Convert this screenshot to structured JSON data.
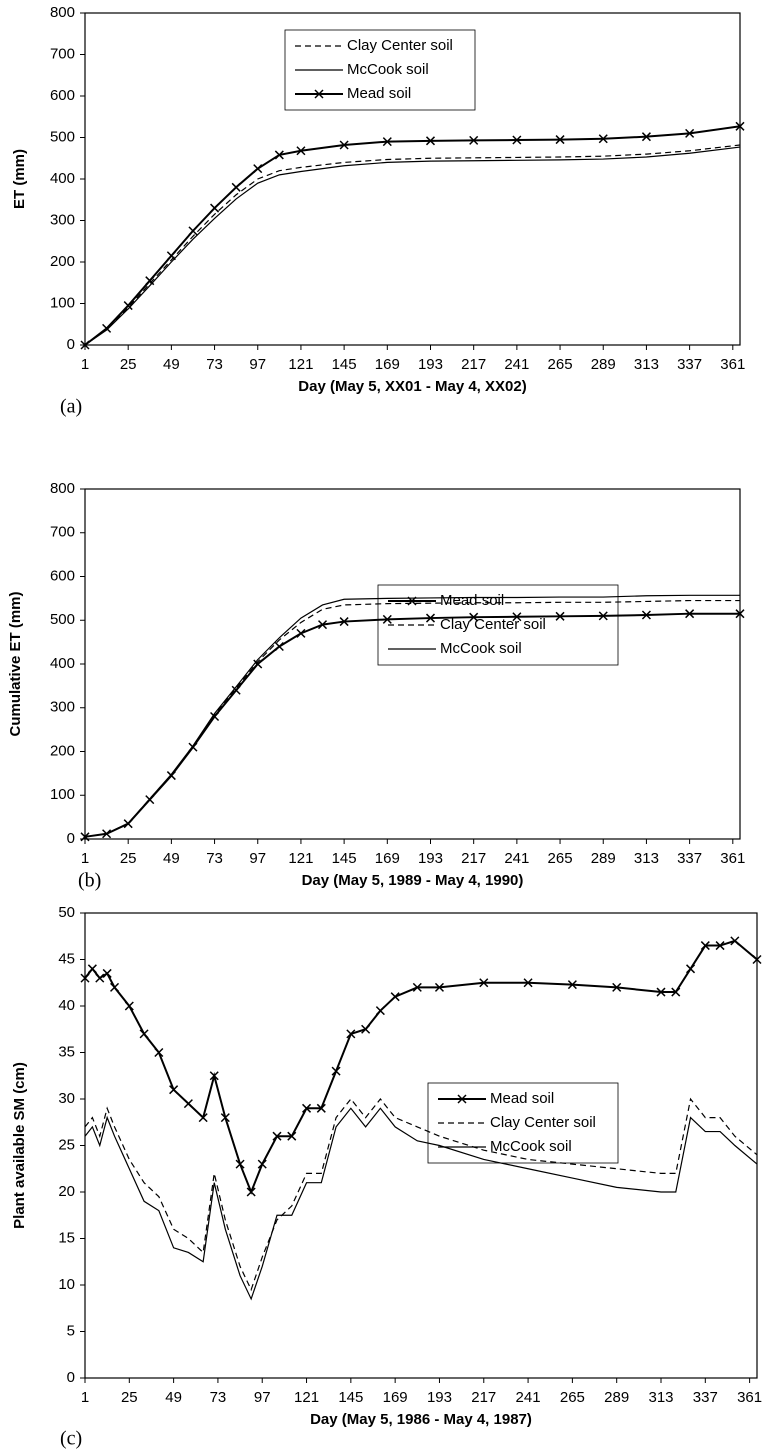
{
  "chart_data": [
    {
      "type": "line",
      "label": "(a)",
      "xlabel": "Day (May 5, XX01 - May 4, XX02)",
      "ylabel": "ET (mm)",
      "x": [
        1,
        13,
        25,
        37,
        49,
        61,
        73,
        85,
        97,
        109,
        121,
        145,
        169,
        193,
        217,
        241,
        265,
        289,
        313,
        337,
        365
      ],
      "series": [
        {
          "name": "Clay Center soil",
          "color": "#000000",
          "dash": "dashed",
          "values": [
            0,
            38,
            90,
            148,
            205,
            262,
            315,
            362,
            400,
            420,
            428,
            440,
            447,
            450,
            451,
            452,
            453,
            455,
            460,
            468,
            482
          ]
        },
        {
          "name": "McCook soil",
          "color": "#000000",
          "dash": "solid",
          "values": [
            0,
            36,
            87,
            143,
            200,
            255,
            305,
            352,
            390,
            410,
            418,
            432,
            440,
            443,
            444,
            445,
            446,
            448,
            453,
            462,
            477
          ]
        },
        {
          "name": "Mead soil",
          "color": "#000000",
          "dash": "solid",
          "marker": "x",
          "values": [
            0,
            40,
            95,
            155,
            215,
            275,
            330,
            380,
            425,
            458,
            468,
            482,
            490,
            492,
            493,
            494,
            495,
            497,
            502,
            510,
            527
          ]
        }
      ],
      "xlim": [
        1,
        365
      ],
      "xticks": [
        1,
        25,
        49,
        73,
        97,
        121,
        145,
        169,
        193,
        217,
        241,
        265,
        289,
        313,
        337,
        361
      ],
      "ylim": [
        0,
        800
      ],
      "yticks": [
        0,
        100,
        200,
        300,
        400,
        500,
        600,
        700,
        800
      ],
      "grid": false,
      "legend": "upper center"
    },
    {
      "type": "line",
      "label": "(b)",
      "xlabel": "Day (May 5, 1989 - May 4, 1990)",
      "ylabel": "Cumulative ET (mm)",
      "x": [
        1,
        13,
        25,
        37,
        49,
        61,
        73,
        85,
        97,
        109,
        121,
        133,
        145,
        169,
        193,
        217,
        241,
        265,
        289,
        313,
        337,
        365
      ],
      "series": [
        {
          "name": "Mead soil",
          "color": "#000000",
          "dash": "solid",
          "marker": "x",
          "values": [
            5,
            12,
            35,
            90,
            145,
            210,
            280,
            340,
            400,
            440,
            470,
            490,
            497,
            502,
            505,
            507,
            508,
            509,
            510,
            512,
            515,
            515
          ]
        },
        {
          "name": "Clay Center soil",
          "color": "#000000",
          "dash": "dashed",
          "values": [
            5,
            12,
            36,
            92,
            147,
            212,
            285,
            345,
            405,
            455,
            495,
            525,
            535,
            538,
            539,
            540,
            540,
            541,
            541,
            543,
            545,
            545
          ]
        },
        {
          "name": "McCook soil",
          "color": "#000000",
          "dash": "solid",
          "values": [
            5,
            12,
            36,
            92,
            148,
            213,
            287,
            348,
            410,
            460,
            505,
            535,
            548,
            550,
            551,
            552,
            552,
            553,
            553,
            556,
            557,
            557
          ]
        }
      ],
      "xlim": [
        1,
        365
      ],
      "xticks": [
        1,
        25,
        49,
        73,
        97,
        121,
        145,
        169,
        193,
        217,
        241,
        265,
        289,
        313,
        337,
        361
      ],
      "ylim": [
        0,
        800
      ],
      "yticks": [
        0,
        100,
        200,
        300,
        400,
        500,
        600,
        700,
        800
      ],
      "grid": false,
      "legend": "center"
    },
    {
      "type": "line",
      "label": "(c)",
      "xlabel": "Day (May 5, 1986 - May 4, 1987)",
      "ylabel": "Plant available SM (cm)",
      "x": [
        1,
        5,
        9,
        13,
        17,
        25,
        33,
        41,
        49,
        57,
        65,
        71,
        77,
        85,
        91,
        97,
        105,
        113,
        121,
        129,
        137,
        145,
        153,
        161,
        169,
        181,
        193,
        217,
        241,
        265,
        289,
        313,
        321,
        329,
        337,
        345,
        353,
        365
      ],
      "series": [
        {
          "name": "Mead soil",
          "color": "#000000",
          "dash": "solid",
          "marker": "x",
          "values": [
            43,
            44,
            43,
            43.5,
            42,
            40,
            37,
            35,
            31,
            29.5,
            28,
            32.5,
            28,
            23,
            20,
            23,
            26,
            26,
            29,
            29,
            33,
            37,
            37.5,
            39.5,
            41,
            42,
            42,
            42.5,
            42.5,
            42.3,
            42,
            41.5,
            41.5,
            44,
            46.5,
            46.5,
            47,
            45
          ]
        },
        {
          "name": "Clay Center soil",
          "color": "#000000",
          "dash": "dashed",
          "values": [
            27,
            28,
            26,
            29,
            27,
            23.5,
            21,
            19.5,
            16,
            15,
            13.5,
            22,
            17,
            12,
            9.5,
            13,
            17,
            18.5,
            22,
            22,
            28,
            30,
            28,
            30,
            28,
            27,
            26,
            24.5,
            23.5,
            23,
            22.5,
            22,
            22,
            30,
            28,
            28,
            26,
            24
          ]
        },
        {
          "name": "McCook soil",
          "color": "#000000",
          "dash": "solid",
          "values": [
            26,
            27,
            25,
            28,
            26,
            22.5,
            19,
            18,
            14,
            13.5,
            12.5,
            21,
            16,
            11,
            8.5,
            12,
            17.5,
            17.5,
            21,
            21,
            27,
            29,
            27,
            29,
            27,
            25.5,
            25,
            23.5,
            22.5,
            21.5,
            20.5,
            20,
            20,
            28,
            26.5,
            26.5,
            25,
            23
          ]
        }
      ],
      "xlim": [
        1,
        365
      ],
      "xticks": [
        1,
        25,
        49,
        73,
        97,
        121,
        145,
        169,
        193,
        217,
        241,
        265,
        289,
        313,
        337,
        361
      ],
      "ylim": [
        0,
        50
      ],
      "yticks": [
        0,
        5,
        10,
        15,
        20,
        25,
        30,
        35,
        40,
        45,
        50
      ],
      "grid": false,
      "legend": "center"
    }
  ]
}
